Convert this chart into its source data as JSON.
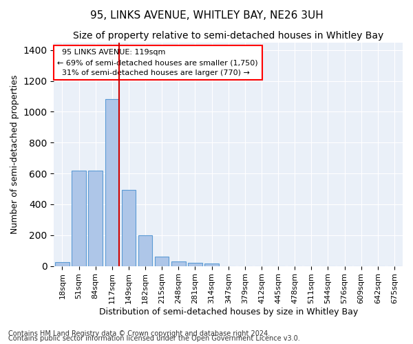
{
  "title": "95, LINKS AVENUE, WHITLEY BAY, NE26 3UH",
  "subtitle": "Size of property relative to semi-detached houses in Whitley Bay",
  "xlabel": "Distribution of semi-detached houses by size in Whitley Bay",
  "ylabel": "Number of semi-detached properties",
  "footnote1": "Contains HM Land Registry data © Crown copyright and database right 2024.",
  "footnote2": "Contains public sector information licensed under the Open Government Licence v3.0.",
  "categories": [
    "18sqm",
    "51sqm",
    "84sqm",
    "117sqm",
    "149sqm",
    "182sqm",
    "215sqm",
    "248sqm",
    "281sqm",
    "314sqm",
    "347sqm",
    "379sqm",
    "412sqm",
    "445sqm",
    "478sqm",
    "511sqm",
    "544sqm",
    "576sqm",
    "609sqm",
    "642sqm",
    "675sqm"
  ],
  "values": [
    25,
    620,
    620,
    1080,
    495,
    200,
    60,
    30,
    20,
    15,
    0,
    0,
    0,
    0,
    0,
    0,
    0,
    0,
    0,
    0,
    0
  ],
  "bar_color": "#aec6e8",
  "bar_edgecolor": "#5b9bd5",
  "highlight_bar_index": 3,
  "highlight_line_color": "#cc0000",
  "property_label": "95 LINKS AVENUE: 119sqm",
  "pct_smaller": 69,
  "n_smaller": 1750,
  "pct_larger": 31,
  "n_larger": 770,
  "ylim": [
    0,
    1450
  ],
  "background_color": "#eaf0f8",
  "grid_color": "#ffffff",
  "title_fontsize": 11,
  "subtitle_fontsize": 10,
  "axis_label_fontsize": 9,
  "tick_fontsize": 8,
  "annotation_fontsize": 8,
  "footnote_fontsize": 7
}
